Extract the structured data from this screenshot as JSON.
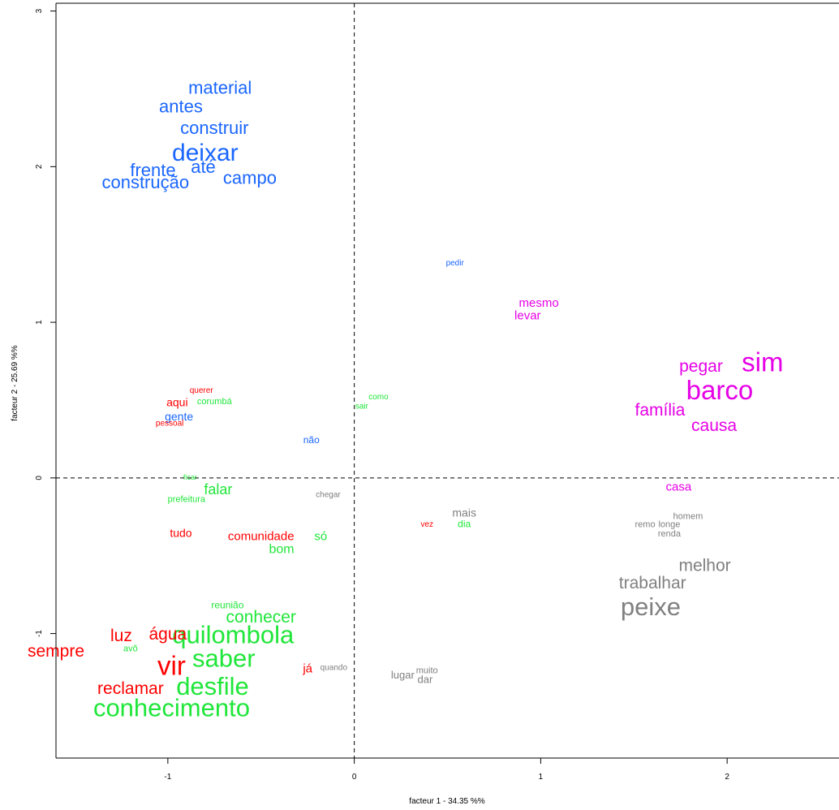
{
  "chart_data": {
    "type": "scatter",
    "title": "",
    "xlabel": "facteur  1  - 34.35 %%",
    "ylabel": "facteur  2  - 25.69 %%",
    "xlim": [
      -1.6,
      2.6
    ],
    "ylim": [
      -1.8,
      3.05
    ],
    "xticks": [
      -1,
      0,
      1,
      2
    ],
    "yticks": [
      -1,
      0,
      1,
      2,
      3
    ],
    "reference_lines": {
      "x": 0,
      "y": 0,
      "style": "dashed"
    },
    "colors": {
      "cluster_blue": "#1a66ff",
      "cluster_magenta": "#e600e6",
      "cluster_green": "#1fe639",
      "cluster_red": "#ff0000",
      "cluster_grey": "#808080"
    },
    "points": [
      {
        "label": "material",
        "x": -0.72,
        "y": 2.5,
        "size": 22,
        "color": "#1a66ff"
      },
      {
        "label": "antes",
        "x": -0.93,
        "y": 2.38,
        "size": 22,
        "color": "#1a66ff"
      },
      {
        "label": "construir",
        "x": -0.75,
        "y": 2.24,
        "size": 22,
        "color": "#1a66ff"
      },
      {
        "label": "deixar",
        "x": -0.8,
        "y": 2.08,
        "size": 30,
        "color": "#1a66ff"
      },
      {
        "label": "frente",
        "x": -1.08,
        "y": 1.97,
        "size": 22,
        "color": "#1a66ff"
      },
      {
        "label": "até",
        "x": -0.81,
        "y": 1.99,
        "size": 22,
        "color": "#1a66ff"
      },
      {
        "label": "construção",
        "x": -1.12,
        "y": 1.89,
        "size": 22,
        "color": "#1a66ff"
      },
      {
        "label": "campo",
        "x": -0.56,
        "y": 1.92,
        "size": 22,
        "color": "#1a66ff"
      },
      {
        "label": "pedir",
        "x": 0.54,
        "y": 1.38,
        "size": 10,
        "color": "#1a66ff"
      },
      {
        "label": "gente",
        "x": -0.94,
        "y": 0.39,
        "size": 14,
        "color": "#1a66ff"
      },
      {
        "label": "não",
        "x": -0.23,
        "y": 0.24,
        "size": 12,
        "color": "#1a66ff"
      },
      {
        "label": "mesmo",
        "x": 0.99,
        "y": 1.12,
        "size": 15,
        "color": "#e600e6"
      },
      {
        "label": "levar",
        "x": 0.93,
        "y": 1.04,
        "size": 15,
        "color": "#e600e6"
      },
      {
        "label": "pegar",
        "x": 1.86,
        "y": 0.71,
        "size": 21,
        "color": "#e600e6"
      },
      {
        "label": "sim",
        "x": 2.19,
        "y": 0.73,
        "size": 33,
        "color": "#e600e6"
      },
      {
        "label": "barco",
        "x": 1.96,
        "y": 0.55,
        "size": 33,
        "color": "#e600e6"
      },
      {
        "label": "família",
        "x": 1.64,
        "y": 0.43,
        "size": 21,
        "color": "#e600e6"
      },
      {
        "label": "causa",
        "x": 1.93,
        "y": 0.33,
        "size": 21,
        "color": "#e600e6"
      },
      {
        "label": "casa",
        "x": 1.74,
        "y": -0.06,
        "size": 15,
        "color": "#e600e6"
      },
      {
        "label": "como",
        "x": 0.13,
        "y": 0.52,
        "size": 10,
        "color": "#1fe639"
      },
      {
        "label": "sair",
        "x": 0.04,
        "y": 0.46,
        "size": 10,
        "color": "#1fe639"
      },
      {
        "label": "corumbá",
        "x": -0.75,
        "y": 0.49,
        "size": 11,
        "color": "#1fe639"
      },
      {
        "label": "ficar",
        "x": -0.88,
        "y": 0.0,
        "size": 9,
        "color": "#1fe639"
      },
      {
        "label": "falar",
        "x": -0.73,
        "y": -0.08,
        "size": 18,
        "color": "#1fe639"
      },
      {
        "label": "prefeitura",
        "x": -0.9,
        "y": -0.14,
        "size": 11,
        "color": "#1fe639"
      },
      {
        "label": "só",
        "x": -0.18,
        "y": -0.38,
        "size": 15,
        "color": "#1fe639"
      },
      {
        "label": "bom",
        "x": -0.39,
        "y": -0.46,
        "size": 16,
        "color": "#1fe639"
      },
      {
        "label": "dia",
        "x": 0.59,
        "y": -0.3,
        "size": 12,
        "color": "#1fe639"
      },
      {
        "label": "reunião",
        "x": -0.68,
        "y": -0.82,
        "size": 12,
        "color": "#1fe639"
      },
      {
        "label": "conhecer",
        "x": -0.5,
        "y": -0.9,
        "size": 21,
        "color": "#1fe639"
      },
      {
        "label": "quilombola",
        "x": -0.65,
        "y": -1.02,
        "size": 31,
        "color": "#1fe639"
      },
      {
        "label": "avô",
        "x": -1.2,
        "y": -1.1,
        "size": 11,
        "color": "#1fe639"
      },
      {
        "label": "saber",
        "x": -0.7,
        "y": -1.17,
        "size": 31,
        "color": "#1fe639"
      },
      {
        "label": "desfile",
        "x": -0.76,
        "y": -1.35,
        "size": 31,
        "color": "#1fe639"
      },
      {
        "label": "conhecimento",
        "x": -0.98,
        "y": -1.49,
        "size": 31,
        "color": "#1fe639"
      },
      {
        "label": "querer",
        "x": -0.82,
        "y": 0.56,
        "size": 10,
        "color": "#ff0000"
      },
      {
        "label": "aqui",
        "x": -0.95,
        "y": 0.48,
        "size": 14,
        "color": "#ff0000"
      },
      {
        "label": "pessoal",
        "x": -0.99,
        "y": 0.35,
        "size": 10,
        "color": "#ff0000"
      },
      {
        "label": "tudo",
        "x": -0.93,
        "y": -0.36,
        "size": 14,
        "color": "#ff0000"
      },
      {
        "label": "comunidade",
        "x": -0.5,
        "y": -0.38,
        "size": 15,
        "color": "#ff0000"
      },
      {
        "label": "vez",
        "x": 0.39,
        "y": -0.3,
        "size": 10,
        "color": "#ff0000"
      },
      {
        "label": "luz",
        "x": -1.25,
        "y": -1.02,
        "size": 21,
        "color": "#ff0000"
      },
      {
        "label": "água",
        "x": -1.0,
        "y": -1.01,
        "size": 21,
        "color": "#ff0000"
      },
      {
        "label": "sempre",
        "x": -1.6,
        "y": -1.12,
        "size": 21,
        "color": "#ff0000"
      },
      {
        "label": "vir",
        "x": -0.98,
        "y": -1.22,
        "size": 33,
        "color": "#ff0000"
      },
      {
        "label": "já",
        "x": -0.25,
        "y": -1.23,
        "size": 15,
        "color": "#ff0000"
      },
      {
        "label": "reclamar",
        "x": -1.2,
        "y": -1.36,
        "size": 21,
        "color": "#ff0000"
      },
      {
        "label": "chegar",
        "x": -0.14,
        "y": -0.11,
        "size": 10,
        "color": "#808080"
      },
      {
        "label": "mais",
        "x": 0.59,
        "y": -0.23,
        "size": 14,
        "color": "#808080"
      },
      {
        "label": "homem",
        "x": 1.79,
        "y": -0.25,
        "size": 11,
        "color": "#808080"
      },
      {
        "label": "remo",
        "x": 1.56,
        "y": -0.3,
        "size": 11,
        "color": "#808080"
      },
      {
        "label": "longe",
        "x": 1.69,
        "y": -0.3,
        "size": 11,
        "color": "#808080"
      },
      {
        "label": "renda",
        "x": 1.69,
        "y": -0.36,
        "size": 11,
        "color": "#808080"
      },
      {
        "label": "melhor",
        "x": 1.88,
        "y": -0.57,
        "size": 21,
        "color": "#808080"
      },
      {
        "label": "trabalhar",
        "x": 1.6,
        "y": -0.68,
        "size": 21,
        "color": "#808080"
      },
      {
        "label": "peixe",
        "x": 1.59,
        "y": -0.84,
        "size": 31,
        "color": "#808080"
      },
      {
        "label": "quando",
        "x": -0.11,
        "y": -1.22,
        "size": 10,
        "color": "#808080"
      },
      {
        "label": "lugar",
        "x": 0.26,
        "y": -1.27,
        "size": 13,
        "color": "#808080"
      },
      {
        "label": "muito",
        "x": 0.39,
        "y": -1.24,
        "size": 11,
        "color": "#808080"
      },
      {
        "label": "dar",
        "x": 0.38,
        "y": -1.3,
        "size": 13,
        "color": "#808080"
      }
    ]
  }
}
